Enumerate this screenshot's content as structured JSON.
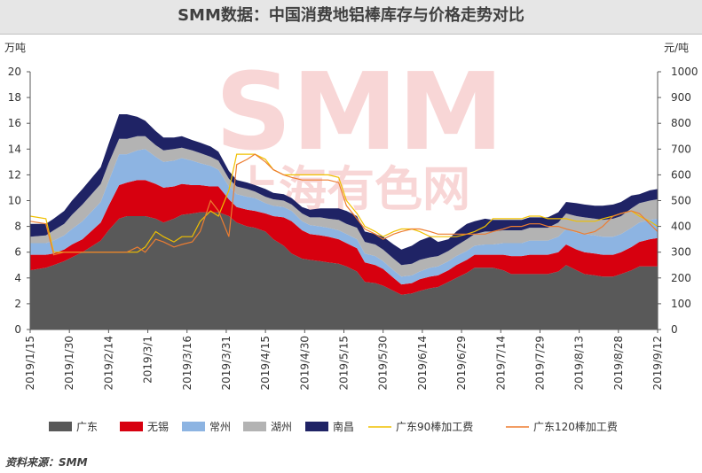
{
  "title": "SMM数据：中国消费地铝棒库存与价格走势对比",
  "source": "资料来源：SMM",
  "watermark": {
    "main": "SMM",
    "sub": "上海有色网"
  },
  "chart_data": {
    "type": "area",
    "left_axis": {
      "unit": "万吨",
      "ylim": [
        0,
        20
      ],
      "ticks": [
        0,
        2,
        4,
        6,
        8,
        10,
        12,
        14,
        16,
        18,
        20
      ]
    },
    "right_axis": {
      "unit": "元/吨",
      "ylim": [
        0,
        1000
      ],
      "ticks": [
        0,
        100,
        200,
        300,
        400,
        500,
        600,
        700,
        800,
        900,
        1000
      ]
    },
    "x_tick_labels": [
      "2019/1/15",
      "2019/1/30",
      "2019/2/14",
      "2019/3/1",
      "2019/3/16",
      "2019/3/31",
      "2019/4/15",
      "2019/4/30",
      "2019/5/15",
      "2019/5/30",
      "2019/6/14",
      "2019/6/29",
      "2019/7/14",
      "2019/7/29",
      "2019/8/13",
      "2019/8/28",
      "2019/9/12"
    ],
    "x": [
      "2019/1/15",
      "2019/1/21",
      "2019/1/24",
      "2019/1/28",
      "2019/1/31",
      "2019/2/4",
      "2019/2/11",
      "2019/2/14",
      "2019/2/18",
      "2019/2/21",
      "2019/2/25",
      "2019/2/28",
      "2019/3/4",
      "2019/3/7",
      "2019/3/11",
      "2019/3/14",
      "2019/3/18",
      "2019/3/21",
      "2019/3/25",
      "2019/3/28",
      "2019/4/1",
      "2019/4/4",
      "2019/4/8",
      "2019/4/11",
      "2019/4/15",
      "2019/4/18",
      "2019/4/22",
      "2019/4/25",
      "2019/4/29",
      "2019/5/2",
      "2019/5/6",
      "2019/5/9",
      "2019/5/13",
      "2019/5/16",
      "2019/5/20",
      "2019/5/23",
      "2019/5/27",
      "2019/5/30",
      "2019/6/3",
      "2019/6/6",
      "2019/6/10",
      "2019/6/13",
      "2019/6/17",
      "2019/6/20",
      "2019/6/24",
      "2019/6/27",
      "2019/7/1",
      "2019/7/4",
      "2019/7/8",
      "2019/7/11",
      "2019/7/15",
      "2019/7/18",
      "2019/7/22",
      "2019/7/25",
      "2019/7/29",
      "2019/8/1",
      "2019/8/5",
      "2019/8/8",
      "2019/8/12",
      "2019/8/15",
      "2019/8/19",
      "2019/8/22",
      "2019/8/26",
      "2019/8/29",
      "2019/9/2",
      "2019/9/5",
      "2019/9/9",
      "2019/9/12"
    ],
    "series": [
      {
        "name": "广东",
        "kind": "stack",
        "axis": "left",
        "color": "#595959",
        "values": [
          4.6,
          4.8,
          5.0,
          5.3,
          5.6,
          6.0,
          6.9,
          7.7,
          8.6,
          8.8,
          8.8,
          8.8,
          8.6,
          8.3,
          8.6,
          8.9,
          9.0,
          9.1,
          9.1,
          9.1,
          8.8,
          8.3,
          8.0,
          7.9,
          7.6,
          7.0,
          6.5,
          5.9,
          5.5,
          5.4,
          5.3,
          5.2,
          5.1,
          4.9,
          4.5,
          3.7,
          3.6,
          3.4,
          3.0,
          2.7,
          2.8,
          3.0,
          3.2,
          3.3,
          3.7,
          4.0,
          4.4,
          4.8,
          4.8,
          4.8,
          4.6,
          4.3,
          4.3,
          4.3,
          4.3,
          4.3,
          4.5,
          5.0,
          4.6,
          4.3,
          4.2,
          4.1,
          4.1,
          4.3,
          4.6,
          4.9,
          4.9,
          4.9
        ]
      },
      {
        "name": "无锡",
        "kind": "stack",
        "axis": "left",
        "color": "#d7000f",
        "values": [
          1.2,
          1.0,
          0.9,
          0.9,
          1.0,
          1.0,
          1.4,
          1.9,
          2.6,
          2.6,
          2.8,
          2.8,
          2.7,
          2.7,
          2.5,
          2.4,
          2.2,
          2.1,
          2.0,
          2.0,
          1.3,
          1.2,
          1.3,
          1.3,
          1.4,
          1.8,
          2.2,
          2.5,
          2.2,
          2.0,
          2.0,
          2.0,
          1.9,
          1.8,
          1.8,
          1.5,
          1.4,
          1.3,
          1.0,
          0.8,
          0.8,
          0.9,
          0.9,
          0.9,
          0.9,
          1.0,
          1.0,
          1.0,
          1.0,
          1.0,
          1.2,
          1.4,
          1.4,
          1.5,
          1.5,
          1.5,
          1.5,
          1.6,
          1.6,
          1.7,
          1.7,
          1.7,
          1.7,
          1.7,
          1.8,
          1.9,
          2.1,
          2.2
        ]
      },
      {
        "name": "常州",
        "kind": "stack",
        "axis": "left",
        "color": "#8db4e2",
        "values": [
          0.9,
          0.9,
          1.0,
          1.1,
          1.2,
          1.4,
          1.6,
          1.9,
          2.4,
          2.2,
          2.3,
          2.4,
          2.1,
          2.0,
          2.0,
          2.0,
          1.9,
          1.7,
          1.6,
          1.3,
          1.0,
          1.0,
          1.0,
          1.0,
          0.8,
          0.8,
          0.8,
          0.8,
          0.7,
          0.7,
          0.7,
          0.7,
          0.7,
          0.7,
          0.7,
          0.7,
          0.7,
          0.6,
          0.6,
          0.6,
          0.6,
          0.6,
          0.7,
          0.7,
          0.7,
          0.7,
          0.7,
          0.7,
          0.8,
          0.8,
          0.9,
          1.0,
          1.0,
          1.1,
          1.1,
          1.1,
          1.2,
          1.2,
          1.3,
          1.4,
          1.4,
          1.4,
          1.4,
          1.4,
          1.5,
          1.5,
          1.5,
          1.5
        ]
      },
      {
        "name": "湖州",
        "kind": "stack",
        "axis": "left",
        "color": "#b3b3b3",
        "values": [
          0.5,
          0.6,
          0.8,
          0.9,
          1.1,
          1.3,
          1.4,
          1.4,
          1.2,
          1.2,
          1.1,
          1.0,
          0.9,
          0.9,
          0.9,
          0.8,
          0.8,
          0.8,
          0.7,
          0.7,
          0.6,
          0.6,
          0.6,
          0.5,
          0.5,
          0.5,
          0.5,
          0.5,
          0.6,
          0.6,
          0.7,
          0.7,
          0.8,
          0.8,
          0.9,
          0.9,
          0.9,
          0.9,
          0.9,
          0.9,
          0.9,
          0.9,
          0.8,
          0.8,
          0.8,
          0.8,
          0.9,
          0.9,
          1.0,
          1.0,
          1.0,
          1.0,
          1.0,
          1.0,
          1.0,
          1.0,
          1.1,
          1.2,
          1.3,
          1.3,
          1.3,
          1.3,
          1.4,
          1.4,
          1.5,
          1.5,
          1.5,
          1.5
        ]
      },
      {
        "name": "南昌",
        "kind": "stack",
        "axis": "left",
        "color": "#1f2365",
        "values": [
          1.0,
          0.9,
          0.9,
          1.0,
          1.1,
          1.2,
          1.3,
          1.5,
          1.9,
          1.9,
          1.5,
          1.2,
          1.1,
          1.0,
          0.9,
          0.9,
          0.8,
          0.8,
          0.8,
          0.7,
          0.6,
          0.5,
          0.5,
          0.5,
          0.6,
          0.5,
          0.5,
          0.5,
          0.5,
          0.6,
          0.7,
          0.8,
          0.9,
          1.0,
          0.9,
          0.8,
          0.8,
          1.0,
          1.1,
          1.2,
          1.4,
          1.5,
          1.6,
          1.1,
          0.9,
          1.1,
          1.2,
          1.0,
          1.0,
          0.9,
          0.8,
          0.8,
          0.8,
          0.8,
          0.8,
          0.8,
          0.8,
          0.9,
          1.0,
          1.0,
          1.0,
          1.1,
          1.1,
          1.1,
          1.0,
          0.7,
          0.8,
          0.8
        ]
      },
      {
        "name": "广东90棒加工费",
        "kind": "line",
        "axis": "right",
        "color": "#f0c000",
        "values": [
          440,
          430,
          300,
          300,
          300,
          300,
          300,
          300,
          300,
          300,
          300,
          320,
          380,
          360,
          340,
          360,
          360,
          420,
          460,
          440,
          540,
          680,
          680,
          680,
          660,
          620,
          600,
          600,
          600,
          600,
          600,
          600,
          590,
          500,
          450,
          400,
          380,
          360,
          380,
          390,
          390,
          380,
          360,
          360,
          360,
          360,
          370,
          380,
          400,
          430,
          430,
          430,
          430,
          440,
          440,
          430,
          430,
          430,
          420,
          420,
          420,
          430,
          440,
          450,
          460,
          440,
          420,
          400
        ]
      },
      {
        "name": "广东120棒加工费",
        "kind": "line",
        "axis": "right",
        "color": "#ed7d31",
        "values": [
          420,
          410,
          290,
          300,
          300,
          300,
          300,
          300,
          300,
          300,
          320,
          300,
          350,
          340,
          320,
          330,
          340,
          380,
          500,
          460,
          360,
          640,
          660,
          680,
          650,
          620,
          600,
          590,
          580,
          580,
          580,
          580,
          570,
          480,
          430,
          390,
          370,
          350,
          370,
          380,
          390,
          390,
          380,
          370,
          370,
          370,
          370,
          370,
          370,
          380,
          390,
          400,
          400,
          410,
          410,
          400,
          400,
          390,
          380,
          370,
          380,
          400,
          440,
          450,
          460,
          450,
          410,
          380
        ]
      }
    ],
    "legend_position": "bottom",
    "grid": false
  }
}
